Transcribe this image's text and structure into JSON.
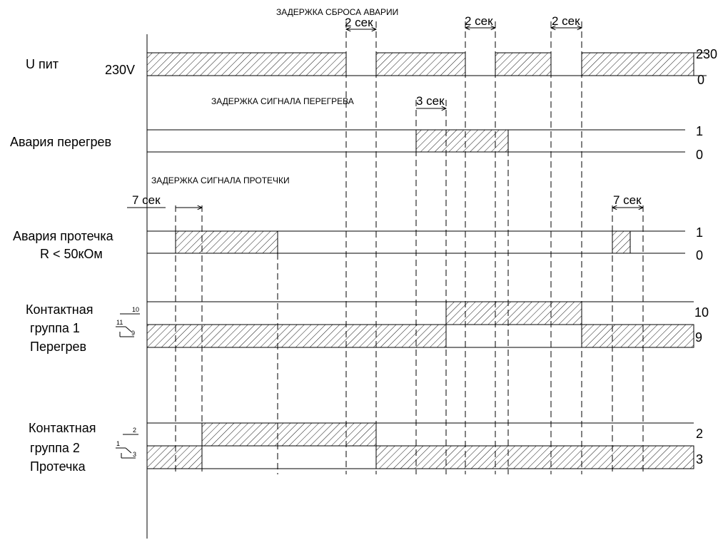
{
  "rows": {
    "u_pit": {
      "label": "U пит",
      "left_value": "230V",
      "level_high": "230",
      "level_low": "0"
    },
    "overheat": {
      "label": "Авария перегрев",
      "level_high": "1",
      "level_low": "0"
    },
    "leak": {
      "label_line1": "Авария протечка",
      "label_line2": "R < 50кОм",
      "level_high": "1",
      "level_low": "0"
    },
    "group1": {
      "label_line1": "Контактная",
      "label_line2": "группа 1",
      "label_line3": "Перегрев",
      "pin_top": "10",
      "pin_mid": "11",
      "pin_bot": "9",
      "level_high": "10",
      "level_low": "9"
    },
    "group2": {
      "label_line1": "Контактная",
      "label_line2": "группа 2",
      "label_line3": "Протечка",
      "pin_top": "2",
      "pin_mid": "1",
      "pin_bot": "3",
      "level_high": "2",
      "level_low": "3"
    }
  },
  "annotations": {
    "reset_delay": "ЗАДЕРЖКА СБРОСА АВАРИИ",
    "overheat_delay": "ЗАДЕРЖКА СИГНАЛА ПЕРЕГРЕВА",
    "leak_delay": "ЗАДЕРЖКА СИГНАЛА ПРОТЕЧКИ",
    "dur_2s_a": "2 сек",
    "dur_2s_b": "2 сек",
    "dur_2s_c": "2 сек",
    "dur_3s": "3 сек",
    "dur_7s_a": "7 сек",
    "dur_7s_b": "7 сек"
  }
}
